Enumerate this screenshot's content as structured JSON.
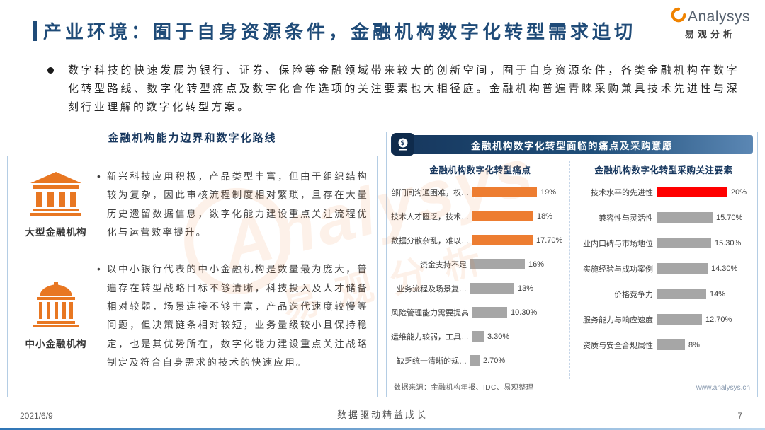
{
  "header": {
    "title": "产业环境：囿于自身资源条件，金融机构数字化转型需求迫切",
    "logo": {
      "brand": "Analysys",
      "brand_cn": "易观分析"
    }
  },
  "intro": {
    "text": "数字科技的快速发展为银行、证券、保险等金融领域带来较大的创新空间，囿于自身资源条件，各类金融机构在数字化转型路线、数字化转型痛点及数字化合作选项的关注要素也大相径庭。金融机构普遍青睐采购兼具技术先进性与深刻行业理解的数字化转型方案。"
  },
  "left_panel": {
    "heading": "金融机构能力边界和数字化路线",
    "items": [
      {
        "label": "大型金融机构",
        "icon": "large-bank-icon",
        "text": "新兴科技应用积极，产品类型丰富，但由于组织结构较为复杂，因此审核流程制度相对繁琐，且存在大量历史遗留数据信息，数字化能力建设重点关注流程优化与运营效率提升。"
      },
      {
        "label": "中小金融机构",
        "icon": "small-bank-icon",
        "text": "以中小银行代表的中小金融机构是数量最为庞大，普遍存在转型战略目标不够清晰，科技投入及人才储备相对较弱，场景连接不够丰富，产品迭代速度较慢等问题，但决策链条相对较短，业务量级较小且保持稳定，也是其优势所在，数字化能力建设重点关注战略制定及符合自身需求的技术的快速应用。"
      }
    ]
  },
  "right_panel": {
    "header": "金融机构数字化转型面临的痛点及采购意愿",
    "source": "数据来源：金融机构年报、IDC、易观整理",
    "website": "www.analysys.cn"
  },
  "chart_data": [
    {
      "type": "bar",
      "orientation": "horizontal",
      "title": "金融机构数字化转型痛点",
      "categories": [
        "部门间沟通困难，权…",
        "技术人才匮乏，技术…",
        "数据分散杂乱，难以…",
        "资金支持不足",
        "业务流程及场景复…",
        "风险管理能力需要提高",
        "运维能力较弱，工具…",
        "缺乏统一清晰的规…"
      ],
      "values": [
        19,
        18,
        17.7,
        16,
        13,
        10.3,
        3.3,
        2.7
      ],
      "value_labels": [
        "19%",
        "18%",
        "17.70%",
        "16%",
        "13%",
        "10.30%",
        "3.30%",
        "2.70%"
      ],
      "bar_colors": [
        "#ED7D31",
        "#ED7D31",
        "#ED7D31",
        "#A6A6A6",
        "#A6A6A6",
        "#A6A6A6",
        "#A6A6A6",
        "#A6A6A6"
      ],
      "xlim": [
        0,
        20
      ],
      "grid": false,
      "legend": false
    },
    {
      "type": "bar",
      "orientation": "horizontal",
      "title": "金融机构数字化转型采购关注要素",
      "categories": [
        "技术水平的先进性",
        "兼容性与灵活性",
        "业内口碑与市场地位",
        "实施经验与成功案例",
        "价格竞争力",
        "服务能力与响应速度",
        "资质与安全合规属性"
      ],
      "values": [
        20,
        15.7,
        15.3,
        14.3,
        14,
        12.7,
        8
      ],
      "value_labels": [
        "20%",
        "15.70%",
        "15.30%",
        "14.30%",
        "14%",
        "12.70%",
        "8%"
      ],
      "bar_colors": [
        "#FF0000",
        "#A6A6A6",
        "#A6A6A6",
        "#A6A6A6",
        "#A6A6A6",
        "#A6A6A6",
        "#A6A6A6"
      ],
      "xlim": [
        0,
        20
      ],
      "grid": false,
      "legend": false
    }
  ],
  "footer": {
    "date": "2021/6/9",
    "slogan": "数据驱动精益成长",
    "page": "7"
  },
  "watermark": {
    "text": "Analysys",
    "text_cn": "易观分析"
  },
  "colors": {
    "title_blue": "#1F4B78",
    "navy": "#17375E",
    "orange": "#ED7D31",
    "red": "#FF0000",
    "gray_bar": "#A6A6A6"
  }
}
